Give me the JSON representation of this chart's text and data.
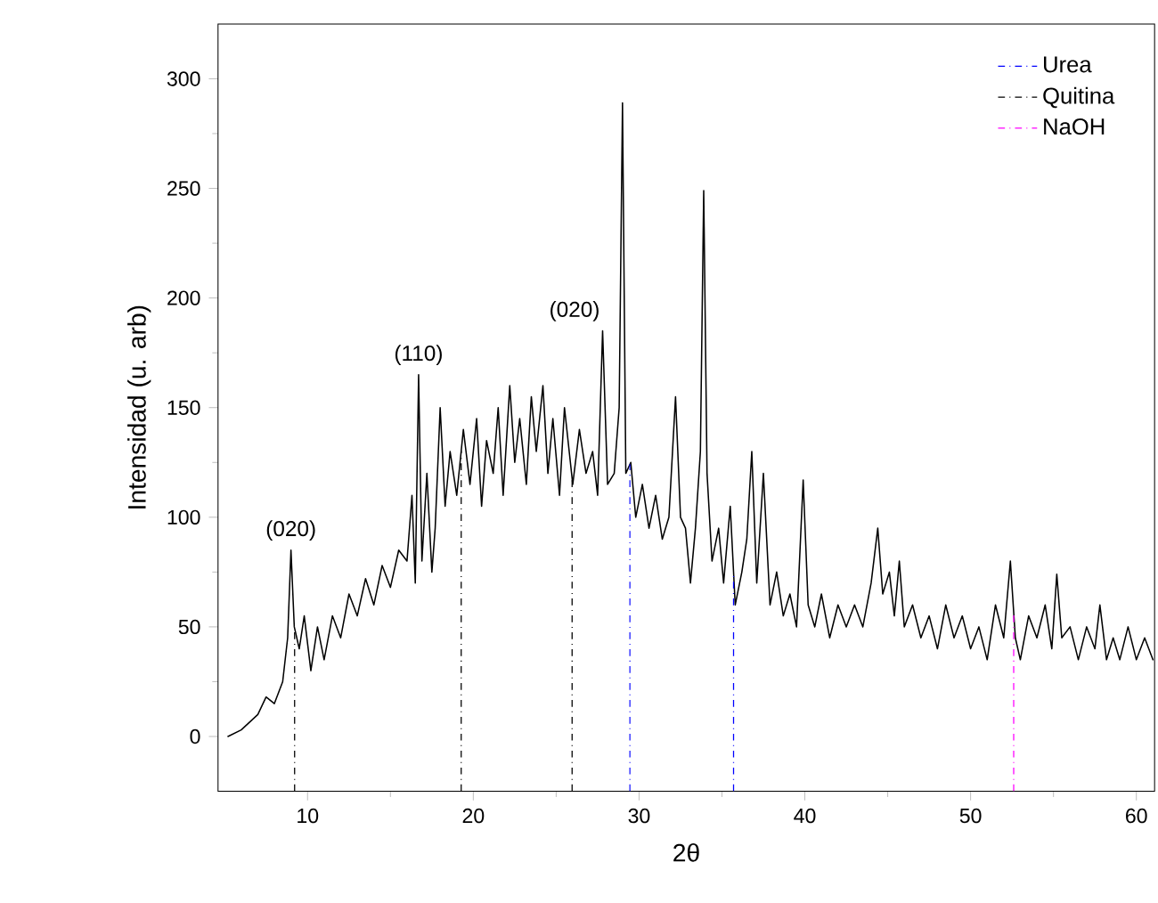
{
  "chart_data": {
    "type": "line",
    "xlabel": "2θ",
    "ylabel": "Intensidad (u. arb)",
    "xlim": [
      4.6,
      61.1
    ],
    "ylim": [
      -25,
      325
    ],
    "xticks": [
      10,
      20,
      30,
      40,
      50,
      60
    ],
    "yticks": [
      0,
      50,
      100,
      150,
      200,
      250,
      300
    ],
    "grid": false,
    "legend": "top right",
    "marker": "none",
    "line_style": "solid",
    "series": [
      {
        "color": "#000000",
        "x": [
          5.2,
          6,
          7,
          7.5,
          8,
          8.5,
          8.8,
          9.0,
          9.2,
          9.5,
          9.8,
          10.2,
          10.6,
          11,
          11.5,
          12,
          12.5,
          13,
          13.5,
          14,
          14.5,
          15,
          15.5,
          16,
          16.3,
          16.5,
          16.7,
          16.9,
          17.2,
          17.5,
          17.7,
          18,
          18.3,
          18.6,
          19,
          19.4,
          19.8,
          20.2,
          20.5,
          20.8,
          21.2,
          21.5,
          21.8,
          22.2,
          22.5,
          22.8,
          23.2,
          23.5,
          23.8,
          24.2,
          24.5,
          24.8,
          25.2,
          25.5,
          26,
          26.4,
          26.8,
          27.2,
          27.5,
          27.8,
          28.1,
          28.5,
          28.8,
          29.0,
          29.2,
          29.5,
          29.8,
          30.2,
          30.6,
          31,
          31.4,
          31.8,
          32.2,
          32.5,
          32.8,
          33.1,
          33.4,
          33.7,
          33.9,
          34.1,
          34.4,
          34.8,
          35.1,
          35.5,
          35.8,
          36.2,
          36.5,
          36.8,
          37.1,
          37.5,
          37.9,
          38.3,
          38.7,
          39.1,
          39.5,
          39.9,
          40.2,
          40.6,
          41,
          41.5,
          42,
          42.5,
          43,
          43.5,
          44,
          44.4,
          44.7,
          45.1,
          45.4,
          45.7,
          46,
          46.5,
          47,
          47.5,
          48,
          48.5,
          49,
          49.5,
          50,
          50.5,
          51,
          51.5,
          52,
          52.4,
          52.7,
          53,
          53.5,
          54,
          54.5,
          54.9,
          55.2,
          55.5,
          56,
          56.5,
          57,
          57.5,
          57.8,
          58.2,
          58.6,
          59,
          59.5,
          60,
          60.5,
          61
        ],
        "values": [
          0,
          3,
          10,
          18,
          15,
          25,
          45,
          85,
          50,
          40,
          55,
          30,
          50,
          35,
          55,
          45,
          65,
          55,
          72,
          60,
          78,
          68,
          85,
          80,
          110,
          70,
          165,
          80,
          120,
          75,
          95,
          150,
          105,
          130,
          110,
          140,
          115,
          145,
          105,
          135,
          120,
          150,
          110,
          160,
          125,
          145,
          115,
          155,
          130,
          160,
          120,
          145,
          110,
          150,
          115,
          140,
          120,
          130,
          110,
          185,
          115,
          120,
          150,
          289,
          120,
          125,
          100,
          115,
          95,
          110,
          90,
          100,
          155,
          100,
          95,
          70,
          95,
          130,
          249,
          120,
          80,
          95,
          70,
          105,
          60,
          75,
          90,
          130,
          70,
          120,
          60,
          75,
          55,
          65,
          50,
          117,
          60,
          50,
          65,
          45,
          60,
          50,
          60,
          50,
          70,
          95,
          65,
          75,
          55,
          80,
          50,
          60,
          45,
          55,
          40,
          60,
          45,
          55,
          40,
          50,
          35,
          60,
          45,
          80,
          45,
          35,
          55,
          45,
          60,
          40,
          74,
          45,
          50,
          35,
          50,
          40,
          60,
          35,
          45,
          35,
          50,
          35,
          45,
          35
        ]
      }
    ],
    "ref_lines": [
      {
        "axis": "x",
        "value": 29.45,
        "label": "Urea",
        "color": "#0000ff",
        "line_style": "dashdot"
      },
      {
        "axis": "x",
        "value": 35.7,
        "color": "#0000ff",
        "line_style": "dashdot"
      },
      {
        "axis": "x",
        "value": 9.22,
        "label": "Quitina",
        "color": "#000000",
        "line_style": "dashdot"
      },
      {
        "axis": "x",
        "value": 19.27,
        "color": "#000000",
        "line_style": "dashdot"
      },
      {
        "axis": "x",
        "value": 25.96,
        "color": "#000000",
        "line_style": "dashdot"
      },
      {
        "axis": "x",
        "value": 52.6,
        "label": "NaOH",
        "color": "#ff00ff",
        "line_style": "dashdot"
      }
    ],
    "annotations": [
      {
        "text": "(020)",
        "x": 9.0,
        "y": 85
      },
      {
        "text": "(110)",
        "x": 16.7,
        "y": 165
      },
      {
        "text": "(020)",
        "x": 27.8,
        "y": 185
      }
    ]
  }
}
